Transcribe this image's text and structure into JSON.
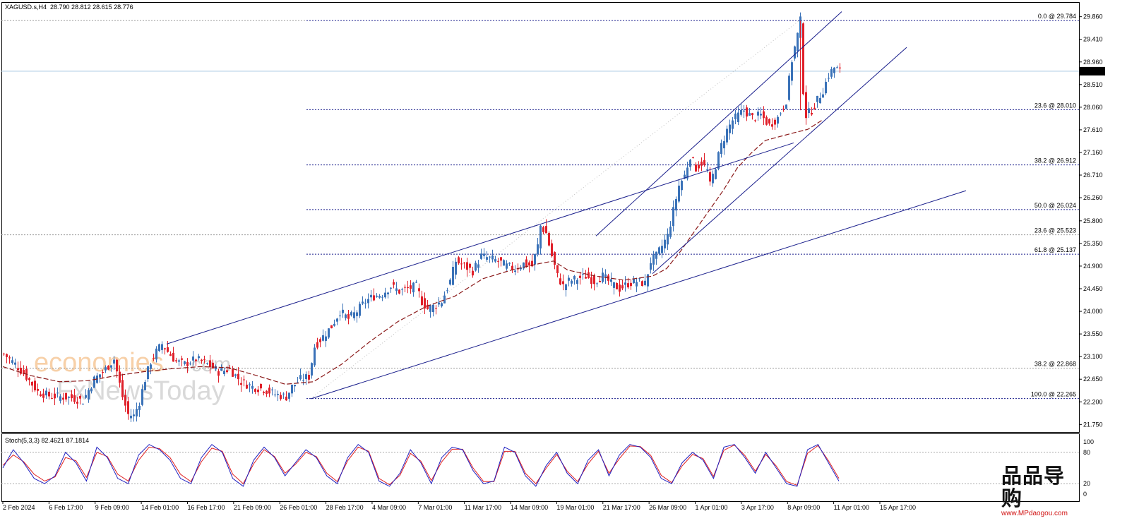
{
  "header": {
    "symbol": "XAGUSD.s,H4",
    "ohlc": "28.790 28.812 28.615 28.776"
  },
  "oscillator": {
    "label": "Stoch(5,3,3) 82.4621 87.1814",
    "levels": [
      "100",
      "80",
      "20",
      "0"
    ]
  },
  "watermark": {
    "line1": "economies",
    "line1_suffix": ".com",
    "line2": "FxNewsToday"
  },
  "brand": {
    "cn": "品品导购",
    "url": "www.MPdaogou.com"
  },
  "colors": {
    "bull": "#3a72b8",
    "bear": "#e0202a",
    "channel": "#1a1f8c",
    "fib": "#1a1f8c",
    "grey_level": "#9a9a9a",
    "ma": "#8b1a1a",
    "stoch_main": "#2020c0",
    "stoch_signal": "#e02020",
    "price_line": "#a8c8e0"
  },
  "chart_data": {
    "type": "candlestick",
    "title": "XAGUSD.s,H4",
    "y_axis_ticks": [
      "29.860",
      "29.410",
      "28.960",
      "28.510",
      "28.060",
      "27.610",
      "27.160",
      "26.710",
      "26.260",
      "25.800",
      "25.350",
      "24.900",
      "24.450",
      "24.000",
      "23.550",
      "23.100",
      "22.650",
      "22.200",
      "21.750"
    ],
    "ylim": [
      21.6,
      30.15
    ],
    "x_axis_ticks": [
      "2 Feb 2024",
      "6 Feb 17:00",
      "9 Feb 09:00",
      "14 Feb 01:00",
      "16 Feb 17:00",
      "21 Feb 09:00",
      "26 Feb 01:00",
      "28 Feb 17:00",
      "4 Mar 09:00",
      "7 Mar 01:00",
      "11 Mar 17:00",
      "14 Mar 09:00",
      "19 Mar 01:00",
      "21 Mar 17:00",
      "26 Mar 09:00",
      "1 Apr 01:00",
      "3 Apr 17:00",
      "8 Apr 09:00",
      "11 Apr 01:00",
      "15 Apr 17:00"
    ],
    "current_price": "28.776",
    "fibonacci_levels": [
      {
        "label": "0.0 @ 29.784",
        "value": 29.784,
        "style": "fib"
      },
      {
        "label": "23.6 @ 28.010",
        "value": 28.01,
        "style": "fib"
      },
      {
        "label": "38.2 @ 26.912",
        "value": 26.912,
        "style": "fib"
      },
      {
        "label": "50.0 @ 26.024",
        "value": 26.024,
        "style": "fib"
      },
      {
        "label": "23.6 @ 25.523",
        "value": 25.523,
        "style": "grey"
      },
      {
        "label": "61.8 @ 25.137",
        "value": 25.137,
        "style": "fib"
      },
      {
        "label": "38.2 @ 22.868",
        "value": 22.868,
        "style": "grey"
      },
      {
        "label": "100.0 @ 22.265",
        "value": 22.265,
        "style": "fib"
      }
    ],
    "close_path": [
      [
        0,
        23.15
      ],
      [
        4,
        22.95
      ],
      [
        8,
        22.7
      ],
      [
        12,
        22.4
      ],
      [
        16,
        22.32
      ],
      [
        20,
        22.3
      ],
      [
        24,
        22.28
      ],
      [
        28,
        22.22
      ],
      [
        32,
        22.65
      ],
      [
        36,
        22.85
      ],
      [
        39,
        23.05
      ],
      [
        42,
        22.3
      ],
      [
        44,
        21.95
      ],
      [
        46,
        21.92
      ],
      [
        48,
        22.2
      ],
      [
        50,
        22.65
      ],
      [
        52,
        23.0
      ],
      [
        54,
        23.2
      ],
      [
        56,
        23.35
      ],
      [
        58,
        23.2
      ],
      [
        61,
        23.0
      ],
      [
        64,
        22.95
      ],
      [
        68,
        23.05
      ],
      [
        72,
        22.95
      ],
      [
        76,
        22.8
      ],
      [
        80,
        22.85
      ],
      [
        84,
        22.6
      ],
      [
        88,
        22.5
      ],
      [
        92,
        22.45
      ],
      [
        96,
        22.35
      ],
      [
        100,
        22.3
      ],
      [
        102,
        22.5
      ],
      [
        105,
        22.65
      ],
      [
        108,
        22.7
      ],
      [
        110,
        23.3
      ],
      [
        113,
        23.5
      ],
      [
        116,
        23.7
      ],
      [
        119,
        24.0
      ],
      [
        122,
        23.85
      ],
      [
        125,
        24.0
      ],
      [
        128,
        24.2
      ],
      [
        131,
        24.3
      ],
      [
        134,
        24.35
      ],
      [
        137,
        24.5
      ],
      [
        140,
        24.4
      ],
      [
        143,
        24.45
      ],
      [
        146,
        24.5
      ],
      [
        148,
        24.2
      ],
      [
        150,
        24.05
      ],
      [
        152,
        24.1
      ],
      [
        155,
        24.2
      ],
      [
        158,
        24.6
      ],
      [
        160,
        25.0
      ],
      [
        163,
        24.9
      ],
      [
        166,
        24.8
      ],
      [
        169,
        25.1
      ],
      [
        172,
        25.05
      ],
      [
        175,
        25.0
      ],
      [
        178,
        24.9
      ],
      [
        181,
        24.85
      ],
      [
        184,
        24.95
      ],
      [
        187,
        24.9
      ],
      [
        189,
        25.3
      ],
      [
        190,
        25.7
      ],
      [
        192,
        25.55
      ],
      [
        194,
        25.1
      ],
      [
        196,
        24.7
      ],
      [
        198,
        24.5
      ],
      [
        200,
        24.6
      ],
      [
        203,
        24.65
      ],
      [
        206,
        24.7
      ],
      [
        209,
        24.6
      ],
      [
        212,
        24.7
      ],
      [
        215,
        24.55
      ],
      [
        218,
        24.45
      ],
      [
        221,
        24.55
      ],
      [
        224,
        24.6
      ],
      [
        227,
        24.55
      ],
      [
        229,
        25.0
      ],
      [
        231,
        25.1
      ],
      [
        233,
        25.3
      ],
      [
        235,
        25.5
      ],
      [
        237,
        26.0
      ],
      [
        239,
        26.5
      ],
      [
        241,
        26.7
      ],
      [
        243,
        27.1
      ],
      [
        245,
        26.85
      ],
      [
        247,
        26.95
      ],
      [
        249,
        26.8
      ],
      [
        250,
        26.5
      ],
      [
        252,
        26.9
      ],
      [
        254,
        27.3
      ],
      [
        256,
        27.6
      ],
      [
        258,
        27.8
      ],
      [
        260,
        27.9
      ],
      [
        262,
        28.0
      ],
      [
        265,
        27.85
      ],
      [
        268,
        27.9
      ],
      [
        271,
        27.7
      ],
      [
        274,
        27.85
      ],
      [
        277,
        28.2
      ],
      [
        279,
        29.0
      ],
      [
        281,
        29.5
      ],
      [
        282,
        29.78
      ],
      [
        283,
        28.4
      ],
      [
        284,
        27.9
      ],
      [
        286,
        28.0
      ],
      [
        288,
        28.2
      ],
      [
        290,
        28.4
      ],
      [
        292,
        28.7
      ],
      [
        294,
        28.85
      ],
      [
        296,
        28.78
      ]
    ],
    "trendlines": [
      {
        "name": "outer-channel-upper",
        "points": [
          [
            58,
            23.35
          ],
          [
            194,
            25.8
          ]
        ]
      },
      {
        "name": "outer-channel-upper-ext",
        "points": [
          [
            194,
            25.8
          ],
          [
            280,
            27.35
          ]
        ]
      },
      {
        "name": "outer-channel-lower",
        "points": [
          [
            109,
            22.26
          ],
          [
            341,
            26.4
          ]
        ]
      },
      {
        "name": "inner-channel-upper",
        "points": [
          [
            210,
            25.5
          ],
          [
            297,
            29.96
          ]
        ]
      },
      {
        "name": "inner-channel-lower",
        "points": [
          [
            230,
            24.75
          ],
          [
            320,
            29.25
          ]
        ]
      }
    ],
    "moving_average": [
      [
        0,
        22.9
      ],
      [
        10,
        22.72
      ],
      [
        20,
        22.6
      ],
      [
        30,
        22.62
      ],
      [
        40,
        22.72
      ],
      [
        50,
        22.8
      ],
      [
        60,
        22.86
      ],
      [
        70,
        22.9
      ],
      [
        80,
        22.88
      ],
      [
        90,
        22.72
      ],
      [
        100,
        22.55
      ],
      [
        110,
        22.6
      ],
      [
        120,
        22.95
      ],
      [
        130,
        23.4
      ],
      [
        140,
        23.8
      ],
      [
        150,
        24.1
      ],
      [
        160,
        24.3
      ],
      [
        170,
        24.65
      ],
      [
        180,
        24.82
      ],
      [
        190,
        24.95
      ],
      [
        195,
        25.0
      ],
      [
        200,
        24.82
      ],
      [
        210,
        24.7
      ],
      [
        220,
        24.62
      ],
      [
        230,
        24.7
      ],
      [
        235,
        24.85
      ],
      [
        240,
        25.2
      ],
      [
        245,
        25.6
      ],
      [
        250,
        26.0
      ],
      [
        255,
        26.4
      ],
      [
        260,
        26.85
      ],
      [
        265,
        27.15
      ],
      [
        270,
        27.4
      ],
      [
        280,
        27.55
      ],
      [
        285,
        27.62
      ],
      [
        290,
        27.8
      ]
    ],
    "stochastic": {
      "main": [
        50,
        85,
        60,
        30,
        20,
        35,
        80,
        60,
        25,
        90,
        70,
        30,
        20,
        75,
        95,
        85,
        65,
        30,
        20,
        70,
        95,
        80,
        30,
        15,
        65,
        90,
        70,
        35,
        60,
        85,
        70,
        35,
        20,
        70,
        95,
        80,
        25,
        15,
        40,
        85,
        60,
        20,
        70,
        90,
        85,
        45,
        20,
        25,
        90,
        80,
        35,
        15,
        55,
        80,
        40,
        20,
        65,
        85,
        35,
        75,
        95,
        90,
        70,
        30,
        20,
        60,
        80,
        65,
        30,
        90,
        95,
        70,
        40,
        80,
        50,
        20,
        15,
        85,
        95,
        60,
        25
      ],
      "signal": [
        55,
        75,
        62,
        38,
        25,
        33,
        70,
        64,
        32,
        80,
        72,
        38,
        25,
        65,
        90,
        87,
        70,
        38,
        24,
        62,
        88,
        82,
        38,
        20,
        58,
        85,
        72,
        40,
        57,
        80,
        72,
        40,
        24,
        64,
        90,
        82,
        30,
        18,
        36,
        78,
        63,
        26,
        62,
        86,
        86,
        50,
        24,
        24,
        82,
        82,
        40,
        20,
        50,
        76,
        44,
        24,
        58,
        82,
        40,
        68,
        92,
        91,
        74,
        36,
        22,
        54,
        76,
        68,
        34,
        84,
        94,
        74,
        44,
        76,
        54,
        24,
        17,
        78,
        93,
        64,
        30
      ],
      "levels": [
        100,
        80,
        20,
        0
      ]
    }
  }
}
